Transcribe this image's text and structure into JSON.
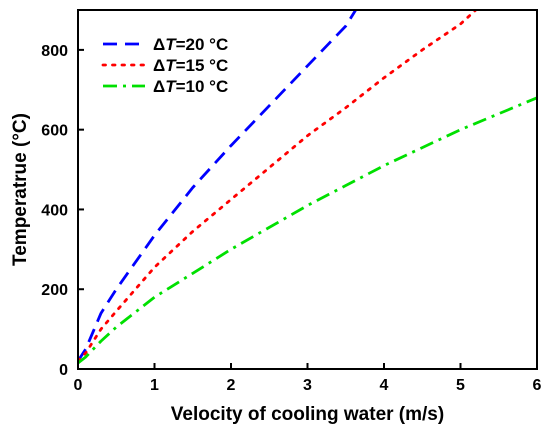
{
  "chart_data": {
    "type": "line",
    "xlabel": "Velocity of cooling water (m/s)",
    "ylabel": "Temperatrue (°C)",
    "xlim": [
      0,
      6
    ],
    "ylim": [
      0,
      900
    ],
    "xticks": [
      0,
      1,
      2,
      3,
      4,
      5,
      6
    ],
    "yticks": [
      0,
      200,
      400,
      600,
      800
    ],
    "grid": false,
    "legend_position": "top-left",
    "series": [
      {
        "name": "ΔT=20 °C",
        "legend_prefix": "Δ",
        "legend_var": "T",
        "legend_suffix": "=20 °C",
        "color": "#0000ff",
        "dash": "dashed",
        "points": [
          [
            0,
            20
          ],
          [
            0.1,
            50
          ],
          [
            0.3,
            140
          ],
          [
            0.5,
            200
          ],
          [
            1,
            335
          ],
          [
            1.5,
            455
          ],
          [
            2,
            560
          ],
          [
            2.5,
            660
          ],
          [
            3,
            760
          ],
          [
            3.5,
            860
          ],
          [
            3.63,
            900
          ]
        ]
      },
      {
        "name": "ΔT=15 °C",
        "legend_prefix": "Δ",
        "legend_var": "T",
        "legend_suffix": "=15 °C",
        "color": "#ff0000",
        "dash": "dotted",
        "points": [
          [
            0,
            20
          ],
          [
            0.1,
            40
          ],
          [
            0.3,
            100
          ],
          [
            0.5,
            145
          ],
          [
            1,
            255
          ],
          [
            1.5,
            345
          ],
          [
            2,
            425
          ],
          [
            2.5,
            505
          ],
          [
            3,
            585
          ],
          [
            3.5,
            655
          ],
          [
            4,
            730
          ],
          [
            4.5,
            800
          ],
          [
            5,
            865
          ],
          [
            5.2,
            900
          ]
        ]
      },
      {
        "name": "ΔT=10 °C",
        "legend_prefix": "Δ",
        "legend_var": "T",
        "legend_suffix": "=10 °C",
        "color": "#00e000",
        "dash": "dashdot",
        "points": [
          [
            0,
            15
          ],
          [
            0.1,
            30
          ],
          [
            0.3,
            70
          ],
          [
            0.5,
            105
          ],
          [
            1,
            180
          ],
          [
            1.5,
            240
          ],
          [
            2,
            300
          ],
          [
            2.5,
            355
          ],
          [
            3,
            410
          ],
          [
            3.5,
            460
          ],
          [
            4,
            510
          ],
          [
            4.5,
            555
          ],
          [
            5,
            600
          ],
          [
            5.5,
            640
          ],
          [
            6,
            680
          ]
        ]
      }
    ]
  }
}
